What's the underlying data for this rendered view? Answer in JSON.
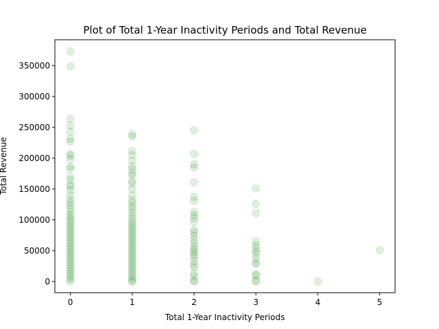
{
  "chart_data": {
    "type": "scatter",
    "title": "Plot of Total 1-Year Inactivity Periods and Total Revenue",
    "xlabel": "Total 1-Year Inactivity Periods",
    "ylabel": "Total Revenue",
    "xlim": [
      -0.25,
      5.25
    ],
    "ylim": [
      -18000,
      392000
    ],
    "xticks": [
      0,
      1,
      2,
      3,
      4,
      5
    ],
    "xtick_labels": [
      "0",
      "1",
      "2",
      "3",
      "4",
      "5"
    ],
    "yticks": [
      0,
      50000,
      100000,
      150000,
      200000,
      250000,
      300000,
      350000
    ],
    "ytick_labels": [
      "0",
      "50000",
      "100000",
      "150000",
      "200000",
      "250000",
      "300000",
      "350000"
    ],
    "grid": false,
    "legend": "none",
    "marker_color": "#008000",
    "marker_alpha": 0.12,
    "series": [
      {
        "points": [
          [
            0,
            373000
          ],
          [
            0,
            349000
          ],
          [
            0,
            264000
          ],
          [
            0,
            253000
          ],
          [
            0,
            243000
          ],
          [
            0,
            231000
          ],
          [
            0,
            227000
          ],
          [
            0,
            207000
          ],
          [
            0,
            204000
          ],
          [
            0,
            198000
          ],
          [
            0,
            186000
          ],
          [
            0,
            183000
          ],
          [
            0,
            170000
          ],
          [
            0,
            165000
          ],
          [
            0,
            157000
          ],
          [
            0,
            154000
          ],
          [
            0,
            148000
          ],
          [
            0,
            140000
          ],
          [
            0,
            133000
          ],
          [
            0,
            128000
          ],
          [
            0,
            124000
          ],
          [
            0,
            118000
          ],
          [
            0,
            113000
          ],
          [
            0,
            108000
          ],
          [
            0,
            104000
          ],
          [
            0,
            100000
          ],
          [
            0,
            96000
          ],
          [
            0,
            92000
          ],
          [
            0,
            88000
          ],
          [
            0,
            84000
          ],
          [
            0,
            80000
          ],
          [
            0,
            76000
          ],
          [
            0,
            72000
          ],
          [
            0,
            68000
          ],
          [
            0,
            64000
          ],
          [
            0,
            60000
          ],
          [
            0,
            56000
          ],
          [
            0,
            52000
          ],
          [
            0,
            48000
          ],
          [
            0,
            44000
          ],
          [
            0,
            40000
          ],
          [
            0,
            36000
          ],
          [
            0,
            32000
          ],
          [
            0,
            28000
          ],
          [
            0,
            24000
          ],
          [
            0,
            20000
          ],
          [
            0,
            16000
          ],
          [
            0,
            12000
          ],
          [
            0,
            8000
          ],
          [
            0,
            4000
          ],
          [
            0,
            0
          ],
          [
            1,
            239000
          ],
          [
            1,
            235000
          ],
          [
            1,
            212000
          ],
          [
            1,
            205000
          ],
          [
            1,
            196000
          ],
          [
            1,
            187000
          ],
          [
            1,
            182000
          ],
          [
            1,
            176000
          ],
          [
            1,
            172000
          ],
          [
            1,
            163000
          ],
          [
            1,
            159000
          ],
          [
            1,
            150000
          ],
          [
            1,
            140000
          ],
          [
            1,
            132000
          ],
          [
            1,
            128000
          ],
          [
            1,
            122000
          ],
          [
            1,
            118000
          ],
          [
            1,
            112000
          ],
          [
            1,
            107000
          ],
          [
            1,
            102000
          ],
          [
            1,
            97000
          ],
          [
            1,
            93000
          ],
          [
            1,
            89000
          ],
          [
            1,
            85000
          ],
          [
            1,
            81000
          ],
          [
            1,
            77000
          ],
          [
            1,
            73000
          ],
          [
            1,
            69000
          ],
          [
            1,
            65000
          ],
          [
            1,
            61000
          ],
          [
            1,
            57000
          ],
          [
            1,
            53000
          ],
          [
            1,
            49000
          ],
          [
            1,
            45000
          ],
          [
            1,
            41000
          ],
          [
            1,
            37000
          ],
          [
            1,
            33000
          ],
          [
            1,
            29000
          ],
          [
            1,
            25000
          ],
          [
            1,
            21000
          ],
          [
            1,
            17000
          ],
          [
            1,
            13000
          ],
          [
            1,
            9000
          ],
          [
            1,
            5000
          ],
          [
            1,
            1000
          ],
          [
            1,
            0
          ],
          [
            2,
            245000
          ],
          [
            2,
            207000
          ],
          [
            2,
            190000
          ],
          [
            2,
            185000
          ],
          [
            2,
            161000
          ],
          [
            2,
            137000
          ],
          [
            2,
            131000
          ],
          [
            2,
            113000
          ],
          [
            2,
            108000
          ],
          [
            2,
            103000
          ],
          [
            2,
            97000
          ],
          [
            2,
            84000
          ],
          [
            2,
            80000
          ],
          [
            2,
            74000
          ],
          [
            2,
            68000
          ],
          [
            2,
            62000
          ],
          [
            2,
            56000
          ],
          [
            2,
            52000
          ],
          [
            2,
            48000
          ],
          [
            2,
            44000
          ],
          [
            2,
            40000
          ],
          [
            2,
            33000
          ],
          [
            2,
            27000
          ],
          [
            2,
            23000
          ],
          [
            2,
            13000
          ],
          [
            2,
            9000
          ],
          [
            2,
            2000
          ],
          [
            2,
            0
          ],
          [
            3,
            151000
          ],
          [
            3,
            126000
          ],
          [
            3,
            111000
          ],
          [
            3,
            65000
          ],
          [
            3,
            59000
          ],
          [
            3,
            54000
          ],
          [
            3,
            49000
          ],
          [
            3,
            45000
          ],
          [
            3,
            38000
          ],
          [
            3,
            31000
          ],
          [
            3,
            28000
          ],
          [
            3,
            12000
          ],
          [
            3,
            10000
          ],
          [
            3,
            2000
          ],
          [
            3,
            0
          ],
          [
            4,
            0
          ],
          [
            5,
            51000
          ]
        ]
      }
    ]
  }
}
